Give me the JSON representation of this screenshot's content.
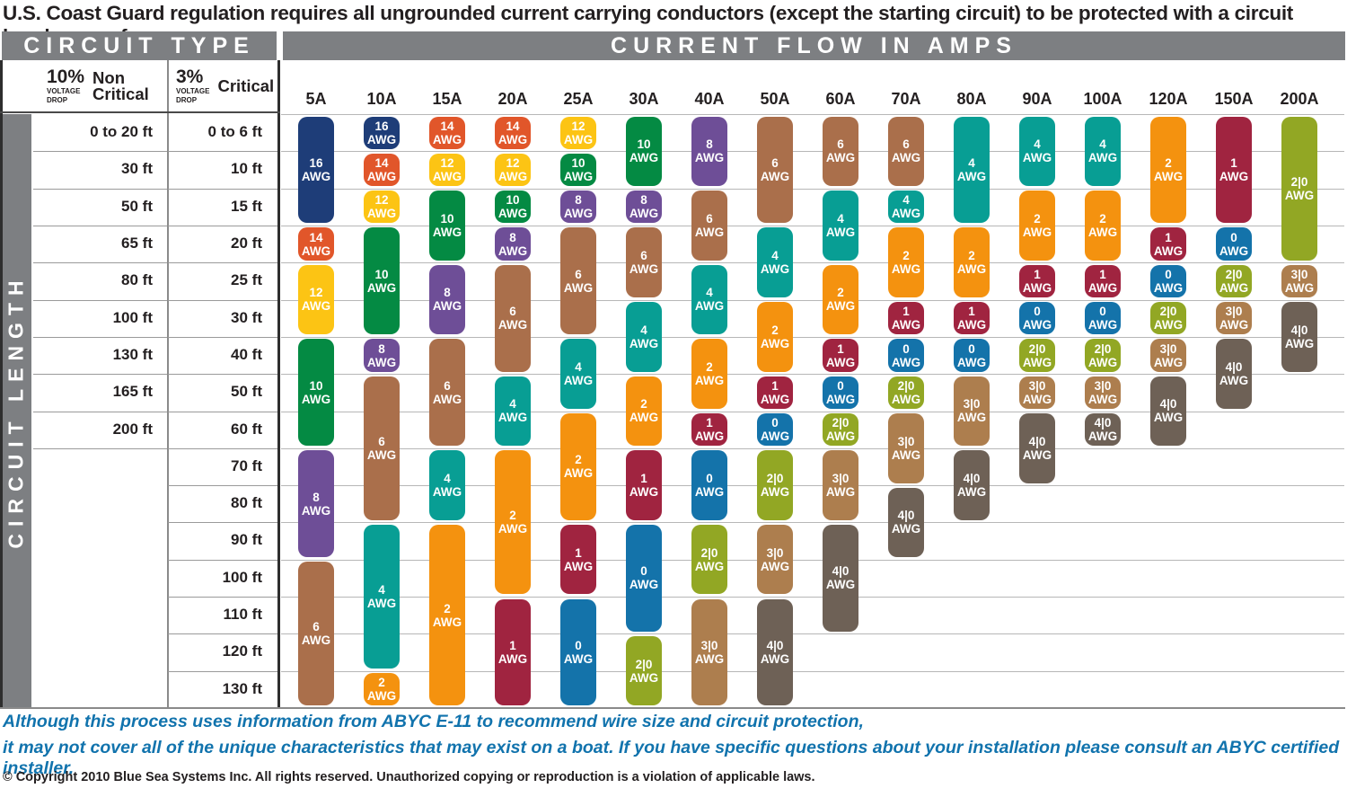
{
  "title": "U.S. Coast Guard regulation requires all ungrounded current carrying conductors (except the starting circuit) to be protected with a circuit breaker or a fuse.",
  "headers": {
    "circuit_type": "CIRCUIT TYPE",
    "current_flow": "CURRENT FLOW IN AMPS",
    "circuit_length": "CIRCUIT LENGTH",
    "non_critical": {
      "pct": "10%",
      "drop1": "VOLTAGE",
      "drop2": "DROP",
      "label1": "Non",
      "label2": "Critical"
    },
    "critical": {
      "pct": "3%",
      "drop1": "VOLTAGE",
      "drop2": "DROP",
      "label": "Critical"
    }
  },
  "footer": {
    "line1": "Although this process uses information from  ABYC E-11 to recommend wire size and circuit protection,",
    "line2": "it may not cover all of the unique characteristics that may exist on a boat. If you have specific questions about your installation please consult an ABYC certified installer.",
    "copyright": "© Copyright 2010 Blue Sea Systems Inc. All rights reserved. Unauthorized copying or reproduction is a violation of applicable laws."
  },
  "chart_data": {
    "type": "table",
    "awg_unit": "AWG",
    "awg_colors": {
      "16": "#1e3d78",
      "14": "#e1562a",
      "12": "#fcc414",
      "10": "#048a43",
      "8": "#6e4e97",
      "6": "#aa6f4b",
      "4": "#089e94",
      "2": "#f4920f",
      "1": "#a02440",
      "0": "#1473aa",
      "2|0": "#92a724",
      "3|0": "#ad7e4e",
      "4|0": "#6e6156"
    },
    "rows": [
      {
        "non_critical": "0 to 20 ft",
        "critical": "0 to 6 ft"
      },
      {
        "non_critical": "30 ft",
        "critical": "10 ft"
      },
      {
        "non_critical": "50 ft",
        "critical": "15 ft"
      },
      {
        "non_critical": "65 ft",
        "critical": "20 ft"
      },
      {
        "non_critical": "80 ft",
        "critical": "25 ft"
      },
      {
        "non_critical": "100 ft",
        "critical": "30 ft"
      },
      {
        "non_critical": "130 ft",
        "critical": "40 ft"
      },
      {
        "non_critical": "165 ft",
        "critical": "50 ft"
      },
      {
        "non_critical": "200 ft",
        "critical": "60 ft"
      },
      {
        "non_critical": "",
        "critical": "70 ft"
      },
      {
        "non_critical": "",
        "critical": "80 ft"
      },
      {
        "non_critical": "",
        "critical": "90 ft"
      },
      {
        "non_critical": "",
        "critical": "100 ft"
      },
      {
        "non_critical": "",
        "critical": "110 ft"
      },
      {
        "non_critical": "",
        "critical": "120 ft"
      },
      {
        "non_critical": "",
        "critical": "130 ft"
      }
    ],
    "columns": [
      {
        "label": "5A",
        "segments": [
          {
            "awg": "16",
            "from": 1,
            "to": 3
          },
          {
            "awg": "14",
            "from": 4,
            "to": 4
          },
          {
            "awg": "12",
            "from": 5,
            "to": 6
          },
          {
            "awg": "10",
            "from": 7,
            "to": 9
          },
          {
            "awg": "8",
            "from": 10,
            "to": 12
          },
          {
            "awg": "6",
            "from": 13,
            "to": 16
          }
        ]
      },
      {
        "label": "10A",
        "segments": [
          {
            "awg": "16",
            "from": 1,
            "to": 1
          },
          {
            "awg": "14",
            "from": 2,
            "to": 2
          },
          {
            "awg": "12",
            "from": 3,
            "to": 3
          },
          {
            "awg": "10",
            "from": 4,
            "to": 6
          },
          {
            "awg": "8",
            "from": 7,
            "to": 7
          },
          {
            "awg": "6",
            "from": 8,
            "to": 11
          },
          {
            "awg": "4",
            "from": 12,
            "to": 15
          },
          {
            "awg": "2",
            "from": 16,
            "to": 16
          }
        ]
      },
      {
        "label": "15A",
        "segments": [
          {
            "awg": "14",
            "from": 1,
            "to": 1
          },
          {
            "awg": "12",
            "from": 2,
            "to": 2
          },
          {
            "awg": "10",
            "from": 3,
            "to": 4
          },
          {
            "awg": "8",
            "from": 5,
            "to": 6
          },
          {
            "awg": "6",
            "from": 7,
            "to": 9
          },
          {
            "awg": "4",
            "from": 10,
            "to": 11
          },
          {
            "awg": "2",
            "from": 12,
            "to": 16
          }
        ]
      },
      {
        "label": "20A",
        "segments": [
          {
            "awg": "14",
            "from": 1,
            "to": 1
          },
          {
            "awg": "12",
            "from": 2,
            "to": 2
          },
          {
            "awg": "10",
            "from": 3,
            "to": 3
          },
          {
            "awg": "8",
            "from": 4,
            "to": 4
          },
          {
            "awg": "6",
            "from": 5,
            "to": 7
          },
          {
            "awg": "4",
            "from": 8,
            "to": 9
          },
          {
            "awg": "2",
            "from": 10,
            "to": 13
          },
          {
            "awg": "1",
            "from": 14,
            "to": 16
          }
        ]
      },
      {
        "label": "25A",
        "segments": [
          {
            "awg": "12",
            "from": 1,
            "to": 1
          },
          {
            "awg": "10",
            "from": 2,
            "to": 2
          },
          {
            "awg": "8",
            "from": 3,
            "to": 3
          },
          {
            "awg": "6",
            "from": 4,
            "to": 6
          },
          {
            "awg": "4",
            "from": 7,
            "to": 8
          },
          {
            "awg": "2",
            "from": 9,
            "to": 11
          },
          {
            "awg": "1",
            "from": 12,
            "to": 13
          },
          {
            "awg": "0",
            "from": 14,
            "to": 16
          }
        ]
      },
      {
        "label": "30A",
        "segments": [
          {
            "awg": "10",
            "from": 1,
            "to": 2
          },
          {
            "awg": "8",
            "from": 3,
            "to": 3
          },
          {
            "awg": "6",
            "from": 4,
            "to": 5
          },
          {
            "awg": "4",
            "from": 6,
            "to": 7
          },
          {
            "awg": "2",
            "from": 8,
            "to": 9
          },
          {
            "awg": "1",
            "from": 10,
            "to": 11
          },
          {
            "awg": "0",
            "from": 12,
            "to": 14
          },
          {
            "awg": "2|0",
            "from": 15,
            "to": 16
          }
        ]
      },
      {
        "label": "40A",
        "segments": [
          {
            "awg": "8",
            "from": 1,
            "to": 2
          },
          {
            "awg": "6",
            "from": 3,
            "to": 4
          },
          {
            "awg": "4",
            "from": 5,
            "to": 6
          },
          {
            "awg": "2",
            "from": 7,
            "to": 8
          },
          {
            "awg": "1",
            "from": 9,
            "to": 9
          },
          {
            "awg": "0",
            "from": 10,
            "to": 11
          },
          {
            "awg": "2|0",
            "from": 12,
            "to": 13
          },
          {
            "awg": "3|0",
            "from": 14,
            "to": 16
          }
        ]
      },
      {
        "label": "50A",
        "segments": [
          {
            "awg": "6",
            "from": 1,
            "to": 3
          },
          {
            "awg": "4",
            "from": 4,
            "to": 5
          },
          {
            "awg": "2",
            "from": 6,
            "to": 7
          },
          {
            "awg": "1",
            "from": 8,
            "to": 8
          },
          {
            "awg": "0",
            "from": 9,
            "to": 9
          },
          {
            "awg": "2|0",
            "from": 10,
            "to": 11
          },
          {
            "awg": "3|0",
            "from": 12,
            "to": 13
          },
          {
            "awg": "4|0",
            "from": 14,
            "to": 16
          }
        ]
      },
      {
        "label": "60A",
        "segments": [
          {
            "awg": "6",
            "from": 1,
            "to": 2
          },
          {
            "awg": "4",
            "from": 3,
            "to": 4
          },
          {
            "awg": "2",
            "from": 5,
            "to": 6
          },
          {
            "awg": "1",
            "from": 7,
            "to": 7
          },
          {
            "awg": "0",
            "from": 8,
            "to": 8
          },
          {
            "awg": "2|0",
            "from": 9,
            "to": 9
          },
          {
            "awg": "3|0",
            "from": 10,
            "to": 11
          },
          {
            "awg": "4|0",
            "from": 12,
            "to": 14
          }
        ]
      },
      {
        "label": "70A",
        "segments": [
          {
            "awg": "6",
            "from": 1,
            "to": 2
          },
          {
            "awg": "4",
            "from": 3,
            "to": 3
          },
          {
            "awg": "2",
            "from": 4,
            "to": 5
          },
          {
            "awg": "1",
            "from": 6,
            "to": 6
          },
          {
            "awg": "0",
            "from": 7,
            "to": 7
          },
          {
            "awg": "2|0",
            "from": 8,
            "to": 8
          },
          {
            "awg": "3|0",
            "from": 9,
            "to": 10
          },
          {
            "awg": "4|0",
            "from": 11,
            "to": 12
          }
        ]
      },
      {
        "label": "80A",
        "segments": [
          {
            "awg": "4",
            "from": 1,
            "to": 3
          },
          {
            "awg": "2",
            "from": 4,
            "to": 5
          },
          {
            "awg": "1",
            "from": 6,
            "to": 6
          },
          {
            "awg": "0",
            "from": 7,
            "to": 7
          },
          {
            "awg": "3|0",
            "from": 8,
            "to": 9
          },
          {
            "awg": "4|0",
            "from": 10,
            "to": 11
          }
        ]
      },
      {
        "label": "90A",
        "segments": [
          {
            "awg": "4",
            "from": 1,
            "to": 2
          },
          {
            "awg": "2",
            "from": 3,
            "to": 4
          },
          {
            "awg": "1",
            "from": 5,
            "to": 5
          },
          {
            "awg": "0",
            "from": 6,
            "to": 6
          },
          {
            "awg": "2|0",
            "from": 7,
            "to": 7
          },
          {
            "awg": "3|0",
            "from": 8,
            "to": 8
          },
          {
            "awg": "4|0",
            "from": 9,
            "to": 10
          }
        ]
      },
      {
        "label": "100A",
        "segments": [
          {
            "awg": "4",
            "from": 1,
            "to": 2
          },
          {
            "awg": "2",
            "from": 3,
            "to": 4
          },
          {
            "awg": "1",
            "from": 5,
            "to": 5
          },
          {
            "awg": "0",
            "from": 6,
            "to": 6
          },
          {
            "awg": "2|0",
            "from": 7,
            "to": 7
          },
          {
            "awg": "3|0",
            "from": 8,
            "to": 8
          },
          {
            "awg": "4|0",
            "from": 9,
            "to": 9
          }
        ]
      },
      {
        "label": "120A",
        "segments": [
          {
            "awg": "2",
            "from": 1,
            "to": 3
          },
          {
            "awg": "1",
            "from": 4,
            "to": 4
          },
          {
            "awg": "0",
            "from": 5,
            "to": 5
          },
          {
            "awg": "2|0",
            "from": 6,
            "to": 6
          },
          {
            "awg": "3|0",
            "from": 7,
            "to": 7
          },
          {
            "awg": "4|0",
            "from": 8,
            "to": 9
          }
        ]
      },
      {
        "label": "150A",
        "segments": [
          {
            "awg": "1",
            "from": 1,
            "to": 3
          },
          {
            "awg": "0",
            "from": 4,
            "to": 4
          },
          {
            "awg": "2|0",
            "from": 5,
            "to": 5
          },
          {
            "awg": "3|0",
            "from": 6,
            "to": 6
          },
          {
            "awg": "4|0",
            "from": 7,
            "to": 8
          }
        ]
      },
      {
        "label": "200A",
        "segments": [
          {
            "awg": "2|0",
            "from": 1,
            "to": 4
          },
          {
            "awg": "3|0",
            "from": 5,
            "to": 5
          },
          {
            "awg": "4|0",
            "from": 6,
            "to": 7
          }
        ]
      }
    ]
  }
}
